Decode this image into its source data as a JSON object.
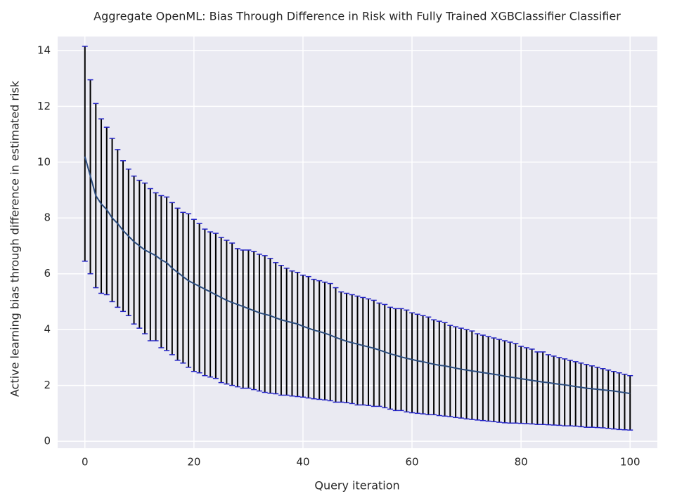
{
  "chart_data": {
    "type": "errorbar_line",
    "title": "Aggregate OpenML: Bias Through Difference in Risk with Fully Trained XGBClassifier Classifier",
    "x_label": "Query iteration",
    "y_label": "Active learning bias through difference in estimated risk",
    "x": [
      0,
      1,
      2,
      3,
      4,
      5,
      6,
      7,
      8,
      9,
      10,
      11,
      12,
      13,
      14,
      15,
      16,
      17,
      18,
      19,
      20,
      21,
      22,
      23,
      24,
      25,
      26,
      27,
      28,
      29,
      30,
      31,
      32,
      33,
      34,
      35,
      36,
      37,
      38,
      39,
      40,
      41,
      42,
      43,
      44,
      45,
      46,
      47,
      48,
      49,
      50,
      51,
      52,
      53,
      54,
      55,
      56,
      57,
      58,
      59,
      60,
      61,
      62,
      63,
      64,
      65,
      66,
      67,
      68,
      69,
      70,
      71,
      72,
      73,
      74,
      75,
      76,
      77,
      78,
      79,
      80,
      81,
      82,
      83,
      84,
      85,
      86,
      87,
      88,
      89,
      90,
      91,
      92,
      93,
      94,
      95,
      96,
      97,
      98,
      99,
      100
    ],
    "series": [
      {
        "color": "#2b4c7e",
        "ecolor": "#000000",
        "capcolor": "#2323c8",
        "values": [
          10.2,
          9.5,
          8.8,
          8.5,
          8.3,
          8.0,
          7.8,
          7.55,
          7.35,
          7.15,
          7.0,
          6.85,
          6.75,
          6.65,
          6.5,
          6.4,
          6.2,
          6.05,
          5.9,
          5.75,
          5.65,
          5.55,
          5.45,
          5.35,
          5.25,
          5.15,
          5.05,
          4.97,
          4.9,
          4.83,
          4.75,
          4.68,
          4.6,
          4.55,
          4.5,
          4.42,
          4.35,
          4.3,
          4.25,
          4.2,
          4.12,
          4.05,
          3.98,
          3.93,
          3.87,
          3.8,
          3.72,
          3.65,
          3.58,
          3.53,
          3.48,
          3.43,
          3.38,
          3.33,
          3.27,
          3.2,
          3.13,
          3.08,
          3.02,
          2.97,
          2.93,
          2.88,
          2.85,
          2.8,
          2.76,
          2.72,
          2.7,
          2.66,
          2.62,
          2.58,
          2.55,
          2.52,
          2.49,
          2.46,
          2.43,
          2.4,
          2.37,
          2.33,
          2.3,
          2.27,
          2.24,
          2.21,
          2.18,
          2.15,
          2.12,
          2.1,
          2.07,
          2.04,
          2.02,
          1.99,
          1.96,
          1.93,
          1.9,
          1.88,
          1.86,
          1.84,
          1.82,
          1.8,
          1.77,
          1.74,
          1.71
        ],
        "upper": [
          14.15,
          12.95,
          12.1,
          11.55,
          11.25,
          10.85,
          10.45,
          10.05,
          9.75,
          9.5,
          9.35,
          9.25,
          9.05,
          8.9,
          8.8,
          8.75,
          8.55,
          8.35,
          8.2,
          8.15,
          7.95,
          7.8,
          7.6,
          7.5,
          7.45,
          7.3,
          7.2,
          7.1,
          6.9,
          6.85,
          6.85,
          6.8,
          6.7,
          6.65,
          6.55,
          6.4,
          6.3,
          6.2,
          6.1,
          6.05,
          5.95,
          5.9,
          5.8,
          5.75,
          5.7,
          5.65,
          5.5,
          5.35,
          5.3,
          5.25,
          5.2,
          5.15,
          5.1,
          5.05,
          4.95,
          4.9,
          4.8,
          4.75,
          4.75,
          4.7,
          4.6,
          4.55,
          4.5,
          4.45,
          4.35,
          4.3,
          4.25,
          4.15,
          4.1,
          4.05,
          4.0,
          3.95,
          3.85,
          3.8,
          3.75,
          3.7,
          3.65,
          3.6,
          3.55,
          3.5,
          3.4,
          3.35,
          3.3,
          3.2,
          3.2,
          3.1,
          3.05,
          3.0,
          2.95,
          2.9,
          2.85,
          2.8,
          2.75,
          2.7,
          2.65,
          2.6,
          2.55,
          2.5,
          2.45,
          2.4,
          2.35
        ],
        "lower": [
          6.45,
          6.0,
          5.5,
          5.3,
          5.25,
          5.0,
          4.8,
          4.65,
          4.5,
          4.2,
          4.05,
          3.85,
          3.6,
          3.6,
          3.35,
          3.25,
          3.1,
          2.9,
          2.8,
          2.65,
          2.5,
          2.45,
          2.35,
          2.3,
          2.25,
          2.1,
          2.05,
          2.0,
          1.95,
          1.9,
          1.9,
          1.85,
          1.8,
          1.75,
          1.72,
          1.7,
          1.65,
          1.65,
          1.62,
          1.6,
          1.58,
          1.55,
          1.52,
          1.5,
          1.48,
          1.45,
          1.4,
          1.4,
          1.38,
          1.35,
          1.3,
          1.3,
          1.28,
          1.25,
          1.25,
          1.2,
          1.15,
          1.1,
          1.1,
          1.05,
          1.02,
          1.0,
          0.98,
          0.95,
          0.95,
          0.92,
          0.9,
          0.88,
          0.85,
          0.83,
          0.8,
          0.78,
          0.76,
          0.74,
          0.72,
          0.7,
          0.68,
          0.66,
          0.65,
          0.65,
          0.64,
          0.63,
          0.62,
          0.6,
          0.6,
          0.59,
          0.58,
          0.57,
          0.55,
          0.55,
          0.54,
          0.52,
          0.5,
          0.5,
          0.49,
          0.48,
          0.46,
          0.44,
          0.42,
          0.41,
          0.4
        ]
      }
    ],
    "xlim": [
      -5,
      105
    ],
    "xticks": [
      0,
      20,
      40,
      60,
      80,
      100
    ],
    "ylim": [
      -0.25,
      14.5
    ],
    "yticks": [
      0,
      2,
      4,
      6,
      8,
      10,
      12,
      14
    ],
    "grid": true,
    "background": "#eaeaf2"
  }
}
